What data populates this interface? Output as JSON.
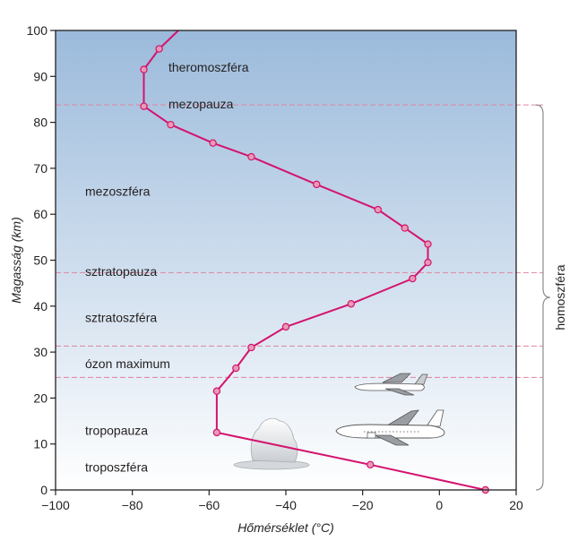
{
  "chart_data": {
    "type": "line",
    "title": "",
    "xlabel": "Hőmérséklet (°C)",
    "ylabel": "Magasság (km)",
    "xlim": [
      -100,
      20
    ],
    "ylim": [
      0,
      100
    ],
    "x_ticks": [
      "−100",
      "−80",
      "−60",
      "−40",
      "−20",
      "0",
      "20"
    ],
    "y_ticks": [
      "0",
      "10",
      "20",
      "30",
      "40",
      "50",
      "60",
      "70",
      "80",
      "90",
      "100"
    ],
    "background_gradient": {
      "top": "#9bbadb",
      "bottom": "#ffffff"
    },
    "line_color": "#d4136e",
    "marker_color": "#e89ab4",
    "series": [
      {
        "x": [
          12,
          -18,
          -58,
          -58,
          -53,
          -49,
          -40,
          -23,
          -7,
          -3,
          -3,
          -9,
          -16,
          -32,
          -49,
          -59,
          -70,
          -77,
          -77,
          -73,
          -68
        ],
        "y": [
          0,
          5.5,
          12.5,
          21.5,
          26.5,
          31,
          35.5,
          40.5,
          46,
          49.5,
          53.5,
          57,
          61,
          66.5,
          72.5,
          75.5,
          79.5,
          83.5,
          91.5,
          96,
          100
        ]
      }
    ],
    "reference_lines": [
      {
        "y": 83.8,
        "color": "#e0849f"
      },
      {
        "y": 47.3,
        "color": "#e0849f"
      },
      {
        "y": 31.3,
        "color": "#e0849f"
      },
      {
        "y": 24.5,
        "color": "#e0849f"
      }
    ],
    "layer_labels": [
      {
        "text": "theromoszféra",
        "y": 92
      },
      {
        "text": "mezopauza",
        "y": 84
      },
      {
        "text": "mezoszféra",
        "y": 65
      },
      {
        "text": "sztratopauza",
        "y": 47.6
      },
      {
        "text": "sztratoszféra",
        "y": 37.5
      },
      {
        "text": "ózon maximum",
        "y": 27.5
      },
      {
        "text": "tropopauza",
        "y": 13
      },
      {
        "text": "troposzféra",
        "y": 5
      }
    ],
    "brace": {
      "label": "homoszféra",
      "y_range": [
        0,
        83.8
      ]
    },
    "illustrations": [
      "cloud-icon",
      "small-airplane-icon",
      "large-airplane-icon"
    ]
  }
}
